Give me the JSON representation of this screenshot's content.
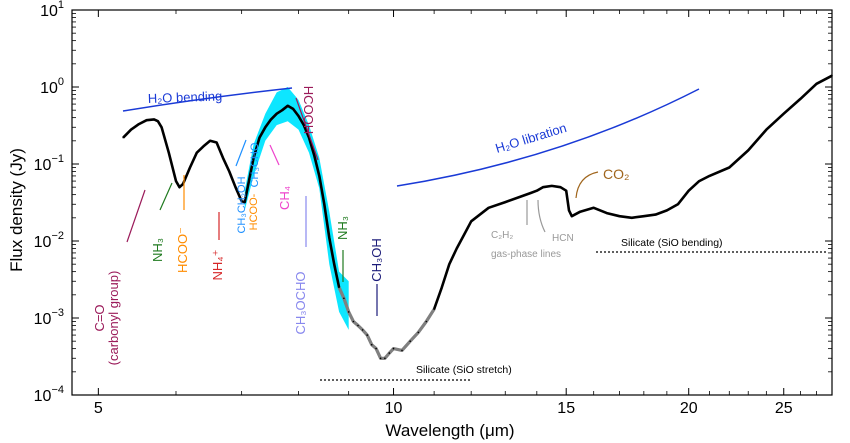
{
  "chart_data": {
    "type": "line",
    "xlabel": "Wavelength (μm)",
    "ylabel": "Flux density (Jy)",
    "x_scale": "log",
    "y_scale": "log",
    "xlim": [
      4.7,
      28
    ],
    "ylim": [
      0.0001,
      10
    ],
    "x_ticks": [
      5,
      10,
      15,
      20,
      25
    ],
    "x_tick_labels": [
      "5",
      "10",
      "15",
      "20",
      "25"
    ],
    "y_ticks": [
      0.0001,
      0.001,
      0.01,
      0.1,
      1,
      10
    ],
    "y_tick_labels": [
      {
        "base": "10",
        "exp": "−4"
      },
      {
        "base": "10",
        "exp": "−3"
      },
      {
        "base": "10",
        "exp": "−2"
      },
      {
        "base": "10",
        "exp": "−1"
      },
      {
        "base": "10",
        "exp": "0"
      },
      {
        "base": "10",
        "exp": "1"
      }
    ],
    "series": [
      {
        "name": "spectrum",
        "color": "#000000",
        "x": [
          5.3,
          5.4,
          5.5,
          5.6,
          5.7,
          5.75,
          5.8,
          5.9,
          6.0,
          6.05,
          6.1,
          6.2,
          6.3,
          6.4,
          6.5,
          6.6,
          6.7,
          6.8,
          6.9,
          7.0,
          7.05,
          7.1,
          7.2,
          7.3,
          7.4,
          7.5,
          7.6,
          7.7,
          7.8,
          7.9,
          8.0,
          8.1,
          8.2,
          8.3,
          8.4,
          8.5,
          8.6,
          8.7,
          8.8,
          8.9,
          9.0,
          9.1,
          9.2,
          9.3,
          9.4,
          9.5,
          9.6,
          9.7,
          9.8,
          9.9,
          10.0,
          10.2,
          10.4,
          10.6,
          10.8,
          11.0,
          11.2,
          11.4,
          11.6,
          11.8,
          12.0,
          12.5,
          13.0,
          13.5,
          13.8,
          14.0,
          14.2,
          14.5,
          14.8,
          15.0,
          15.1,
          15.2,
          15.5,
          16.0,
          16.5,
          17.0,
          17.5,
          18.0,
          18.5,
          19.0,
          19.5,
          20.0,
          20.5,
          21.0,
          22.0,
          23.0,
          24.0,
          25.0,
          26.0,
          27.0,
          28.0
        ],
        "y": [
          0.22,
          0.28,
          0.33,
          0.37,
          0.38,
          0.36,
          0.3,
          0.14,
          0.06,
          0.05,
          0.055,
          0.09,
          0.14,
          0.17,
          0.2,
          0.19,
          0.12,
          0.08,
          0.05,
          0.033,
          0.032,
          0.05,
          0.12,
          0.22,
          0.3,
          0.38,
          0.45,
          0.5,
          0.57,
          0.52,
          0.42,
          0.32,
          0.22,
          0.13,
          0.07,
          0.03,
          0.011,
          0.005,
          0.0025,
          0.0018,
          0.0012,
          0.0009,
          0.0008,
          0.0007,
          0.0006,
          0.00045,
          0.0004,
          0.0003,
          0.0003,
          0.00035,
          0.0004,
          0.00038,
          0.0005,
          0.00065,
          0.0009,
          0.0013,
          0.0025,
          0.005,
          0.008,
          0.012,
          0.018,
          0.027,
          0.032,
          0.038,
          0.042,
          0.045,
          0.05,
          0.052,
          0.05,
          0.045,
          0.025,
          0.021,
          0.024,
          0.027,
          0.023,
          0.021,
          0.02,
          0.021,
          0.022,
          0.025,
          0.03,
          0.045,
          0.06,
          0.07,
          0.09,
          0.15,
          0.28,
          0.45,
          0.7,
          1.1,
          1.4
        ]
      },
      {
        "name": "cyan band upper",
        "color": "#00e5ff",
        "x": [
          7.05,
          7.2,
          7.4,
          7.6,
          7.8,
          8.0,
          8.2,
          8.4,
          8.6,
          8.8,
          9.0
        ],
        "y": [
          0.045,
          0.18,
          0.45,
          0.85,
          1.0,
          0.68,
          0.32,
          0.12,
          0.024,
          0.004,
          0.003
        ]
      },
      {
        "name": "cyan band lower",
        "color": "#00e5ff",
        "x": [
          7.05,
          7.2,
          7.4,
          7.6,
          7.8,
          8.0,
          8.2,
          8.4,
          8.6,
          8.8,
          9.0
        ],
        "y": [
          0.025,
          0.07,
          0.2,
          0.32,
          0.36,
          0.28,
          0.14,
          0.048,
          0.005,
          0.0012,
          0.0007
        ]
      }
    ],
    "annotations": [
      {
        "label": "H₂O bending",
        "color": "#1a3ad6"
      },
      {
        "label": "H₂O libration",
        "color": "#1a3ad6"
      },
      {
        "label": "C=O",
        "label2": "(carbonyl group)",
        "color": "#9b1b5a"
      },
      {
        "label": "NH₃",
        "color": "#1f7a1f"
      },
      {
        "label": "HCOO⁻",
        "color": "#ff8c00"
      },
      {
        "label": "NH₄⁺",
        "color": "#d62728"
      },
      {
        "label": "CH₃CH₂OH",
        "color": "#1e90ff"
      },
      {
        "label": "HCOO-",
        "color": "#ff8c00"
      },
      {
        "label": "CH₃CHO",
        "color": "#1e90ff"
      },
      {
        "label": "CH₄",
        "color": "#ee44cc"
      },
      {
        "label": "HCOOH",
        "color": "#9b1b5a"
      },
      {
        "label": "CH₃OCHO",
        "color": "#8888ee"
      },
      {
        "label": "NH₃",
        "color": "#1f7a1f"
      },
      {
        "label": "CH₃OH",
        "color": "#1c1c7a"
      },
      {
        "label": "CO₂",
        "color": "#a0651c"
      },
      {
        "label": "C₂H₂",
        "color": "#999999"
      },
      {
        "label": "HCN",
        "color": "#999999"
      },
      {
        "label": "gas-phase lines",
        "color": "#999999"
      },
      {
        "label": "Silicate (SiO bending)",
        "color": "#000000"
      },
      {
        "label": "Silicate (SiO stretch)",
        "color": "#000000"
      }
    ]
  }
}
